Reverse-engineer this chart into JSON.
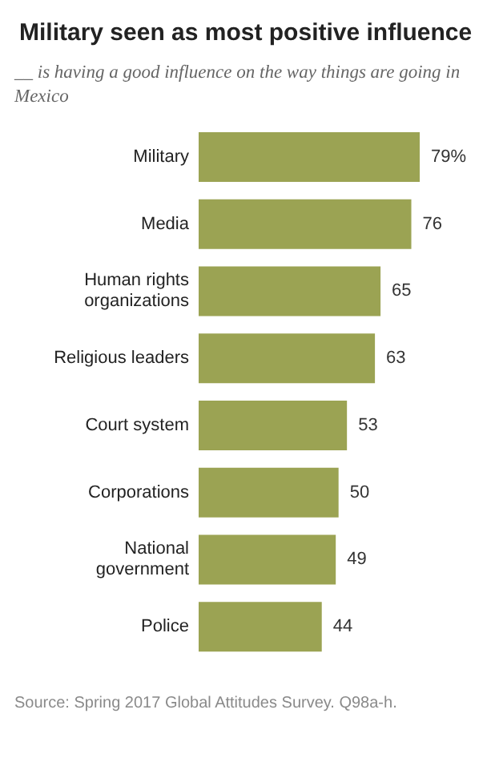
{
  "chart_data": {
    "type": "bar",
    "orientation": "horizontal",
    "title": "Military seen as most positive influence",
    "subtitle": "__ is having a good influence on the way things are going in Mexico",
    "categories": [
      "Military",
      "Media",
      "Human rights\norganizations",
      "Religious leaders",
      "Court system",
      "Corporations",
      "National\ngovernment",
      "Police"
    ],
    "values": [
      79,
      76,
      65,
      63,
      53,
      50,
      49,
      44
    ],
    "value_labels": [
      "79%",
      "76",
      "65",
      "63",
      "53",
      "50",
      "49",
      "44"
    ],
    "color": "#9ba353",
    "annotations": [
      "Source: Spring 2017 Global Attitudes Survey. Q98a-h."
    ]
  }
}
